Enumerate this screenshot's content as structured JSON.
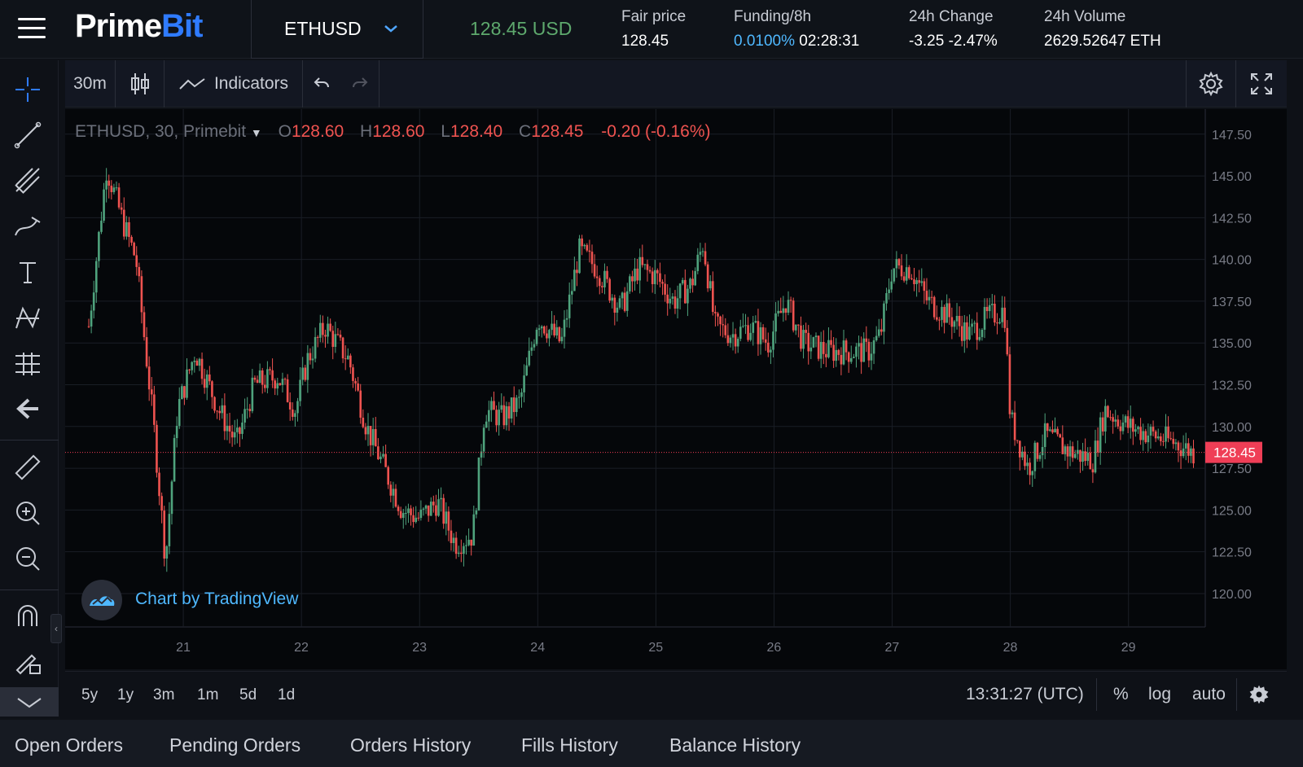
{
  "header": {
    "logo_prime": "Prime",
    "logo_bit": "Bit",
    "symbol": "ETHUSD",
    "last_price": "128.45 USD",
    "fair_price_label": "Fair price",
    "fair_price_value": "128.45",
    "funding_label": "Funding/8h",
    "funding_rate": "0.0100%",
    "funding_countdown": "02:28:31",
    "change_label": "24h Change",
    "change_value": "-3.25",
    "change_pct": "-2.47%",
    "volume_label": "24h Volume",
    "volume_value": "2629.52647 ETH"
  },
  "chart_toolbar": {
    "interval": "30m",
    "indicators_label": "Indicators"
  },
  "legend": {
    "symbol": "ETHUSD, 30, Primebit",
    "o_label": "O",
    "o_value": "128.60",
    "h_label": "H",
    "h_value": "128.60",
    "l_label": "L",
    "l_value": "128.40",
    "c_label": "C",
    "c_value": "128.45",
    "change": "-0.20 (-0.16%)"
  },
  "watermark": "Chart by TradingView",
  "bottom_bar": {
    "ranges": [
      "5y",
      "1y",
      "3m",
      "1m",
      "5d",
      "1d"
    ],
    "clock": "13:31:27 (UTC)",
    "percent_label": "%",
    "log_label": "log",
    "auto_label": "auto"
  },
  "tabs": [
    "Open Orders",
    "Pending Orders",
    "Orders History",
    "Fills History",
    "Balance History"
  ],
  "chart_data": {
    "type": "candlestick",
    "x_ticks": [
      "21",
      "22",
      "23",
      "24",
      "25",
      "26",
      "27",
      "28",
      "29"
    ],
    "y_ticks": [
      120.0,
      122.5,
      125.0,
      127.5,
      130.0,
      132.5,
      135.0,
      137.5,
      140.0,
      142.5,
      145.0,
      147.5
    ],
    "ylim": [
      118.0,
      149.0
    ],
    "last_price_label": "128.45",
    "last_price": 128.45,
    "close_path": [
      {
        "x": 20.2,
        "y": 136.0
      },
      {
        "x": 20.35,
        "y": 145.5
      },
      {
        "x": 20.5,
        "y": 142.0
      },
      {
        "x": 20.6,
        "y": 140.0
      },
      {
        "x": 20.75,
        "y": 130.0
      },
      {
        "x": 20.85,
        "y": 122.0
      },
      {
        "x": 20.95,
        "y": 131.0
      },
      {
        "x": 21.1,
        "y": 134.5
      },
      {
        "x": 21.3,
        "y": 131.0
      },
      {
        "x": 21.45,
        "y": 129.0
      },
      {
        "x": 21.6,
        "y": 132.5
      },
      {
        "x": 21.8,
        "y": 133.0
      },
      {
        "x": 21.95,
        "y": 131.0
      },
      {
        "x": 22.05,
        "y": 134.0
      },
      {
        "x": 22.2,
        "y": 136.0
      },
      {
        "x": 22.4,
        "y": 134.0
      },
      {
        "x": 22.55,
        "y": 130.0
      },
      {
        "x": 22.7,
        "y": 127.5
      },
      {
        "x": 22.85,
        "y": 125.0
      },
      {
        "x": 23.0,
        "y": 124.5
      },
      {
        "x": 23.15,
        "y": 125.5
      },
      {
        "x": 23.3,
        "y": 123.0
      },
      {
        "x": 23.45,
        "y": 123.5
      },
      {
        "x": 23.55,
        "y": 131.0
      },
      {
        "x": 23.7,
        "y": 130.5
      },
      {
        "x": 23.85,
        "y": 131.5
      },
      {
        "x": 24.0,
        "y": 136.5
      },
      {
        "x": 24.2,
        "y": 135.0
      },
      {
        "x": 24.35,
        "y": 140.5
      },
      {
        "x": 24.5,
        "y": 139.5
      },
      {
        "x": 24.7,
        "y": 137.0
      },
      {
        "x": 24.85,
        "y": 139.5
      },
      {
        "x": 25.0,
        "y": 139.0
      },
      {
        "x": 25.15,
        "y": 137.5
      },
      {
        "x": 25.3,
        "y": 138.5
      },
      {
        "x": 25.4,
        "y": 141.0
      },
      {
        "x": 25.5,
        "y": 136.0
      },
      {
        "x": 25.65,
        "y": 135.5
      },
      {
        "x": 25.8,
        "y": 136.0
      },
      {
        "x": 25.95,
        "y": 135.0
      },
      {
        "x": 26.1,
        "y": 137.5
      },
      {
        "x": 26.25,
        "y": 135.0
      },
      {
        "x": 26.45,
        "y": 134.5
      },
      {
        "x": 26.6,
        "y": 134.5
      },
      {
        "x": 26.8,
        "y": 134.5
      },
      {
        "x": 26.9,
        "y": 135.5
      },
      {
        "x": 27.0,
        "y": 139.5
      },
      {
        "x": 27.15,
        "y": 139.5
      },
      {
        "x": 27.3,
        "y": 137.5
      },
      {
        "x": 27.5,
        "y": 136.5
      },
      {
        "x": 27.65,
        "y": 135.5
      },
      {
        "x": 27.8,
        "y": 136.5
      },
      {
        "x": 27.95,
        "y": 137.0
      },
      {
        "x": 28.0,
        "y": 130.5
      },
      {
        "x": 28.15,
        "y": 127.5
      },
      {
        "x": 28.3,
        "y": 129.5
      },
      {
        "x": 28.5,
        "y": 128.5
      },
      {
        "x": 28.7,
        "y": 128.0
      },
      {
        "x": 28.8,
        "y": 131.0
      },
      {
        "x": 29.0,
        "y": 130.0
      },
      {
        "x": 29.2,
        "y": 129.5
      },
      {
        "x": 29.4,
        "y": 129.0
      },
      {
        "x": 29.55,
        "y": 128.45
      }
    ]
  },
  "colors": {
    "up": "#4fa37d",
    "down": "#ef5350",
    "accent_blue": "#2f7bff",
    "last_price_green": "#5ea96d",
    "price_tag_bg": "#ef3e56"
  },
  "icons": [
    "hamburger-icon",
    "chevron-down-icon",
    "crosshair-icon",
    "trend-line-icon",
    "pitchfork-icon",
    "brush-icon",
    "text-icon",
    "pattern-icon",
    "measure-tools-icon",
    "back-arrow-icon",
    "ruler-icon",
    "zoom-in-icon",
    "zoom-out-icon",
    "magnet-icon",
    "lock-drawings-icon",
    "candles-icon",
    "indicators-icon",
    "undo-icon",
    "redo-icon",
    "gear-icon",
    "fullscreen-icon",
    "tradingview-logo-icon"
  ]
}
